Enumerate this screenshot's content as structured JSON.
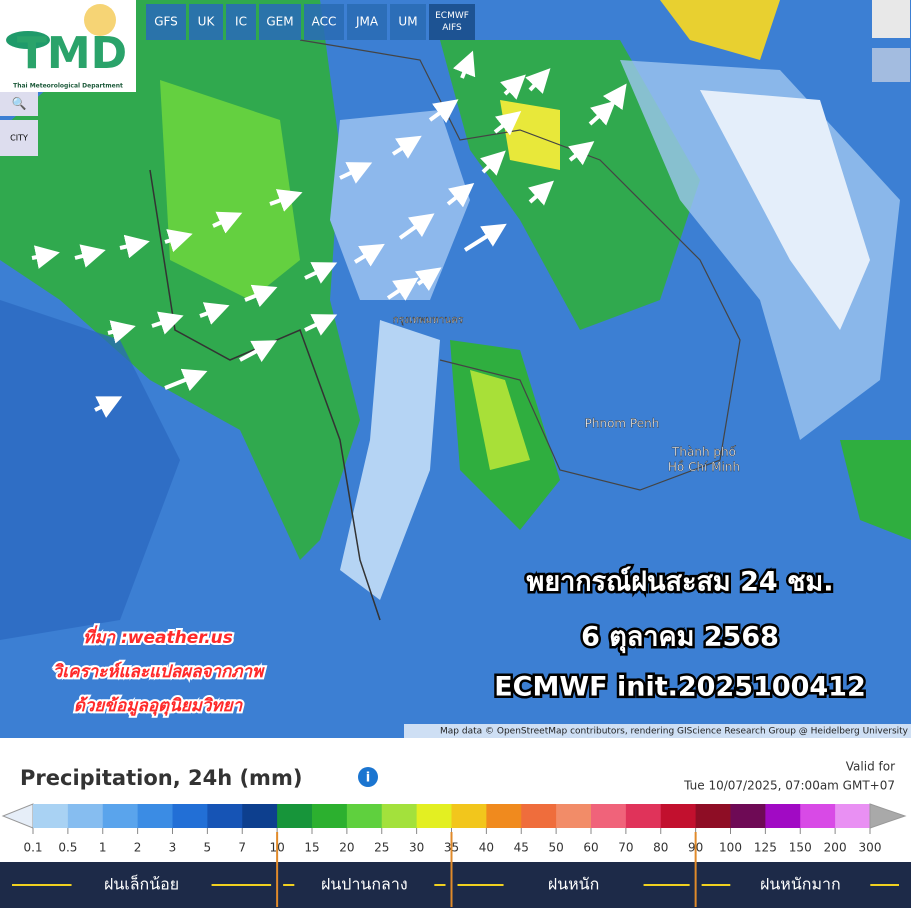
{
  "logo": {
    "title": "TMD",
    "subtitle": "Thai Meteorological Department"
  },
  "models": [
    "GFS",
    "UK",
    "IC",
    "GEM",
    "ACC",
    "JMA",
    "UM",
    "ECMWF AIFS"
  ],
  "controls": {
    "city": "CITY"
  },
  "map": {
    "labels": [
      "กรุงเทพมหานคร",
      "Phnom Penh",
      "Thành phố Hồ Chí Minh"
    ],
    "overlay": [
      "พยากรณ์ฝนสะสม 24 ชม.",
      "6 ตุลาคม 2568",
      "ECMWF init.2025100412"
    ],
    "source": [
      "ที่มา :weather.us",
      "วิเคราะห์และแปลผลจากภาพ",
      "ด้วยข้อมูลอุตุนิยมวิทยา"
    ],
    "attribution": "Map data © OpenStreetMap contributors, rendering GIScience Research Group @ Heidelberg University"
  },
  "legend": {
    "title": "Precipitation, 24h (mm)",
    "valid_label": "Valid for",
    "valid_time": "Tue 10/07/2025, 07:00am GMT+07",
    "stops": [
      0.1,
      0.5,
      1,
      2,
      3,
      5,
      7,
      10,
      15,
      20,
      25,
      30,
      35,
      40,
      45,
      50,
      60,
      70,
      80,
      90,
      100,
      125,
      150,
      200,
      300
    ],
    "colors": [
      "#e6eef8",
      "#a9d2f3",
      "#86bdf0",
      "#5aa4ec",
      "#3b8ce4",
      "#226fd6",
      "#1654b5",
      "#0d3f8e",
      "#17953a",
      "#2cb02f",
      "#5fd03e",
      "#a3e13c",
      "#e3ef22",
      "#f2c61c",
      "#f08a1e",
      "#ef6d3c",
      "#f28c68",
      "#f0637a",
      "#e0335a",
      "#c2102e",
      "#8e0d25",
      "#6e0a55",
      "#a10ac4",
      "#d84ae6",
      "#e990f3",
      "#f3c9f8",
      "#dcdcdc",
      "#a9a9a9"
    ],
    "categories": [
      "ฝนเล็กน้อย",
      "ฝนปานกลาง",
      "ฝนหนัก",
      "ฝนหนักมาก"
    ]
  }
}
